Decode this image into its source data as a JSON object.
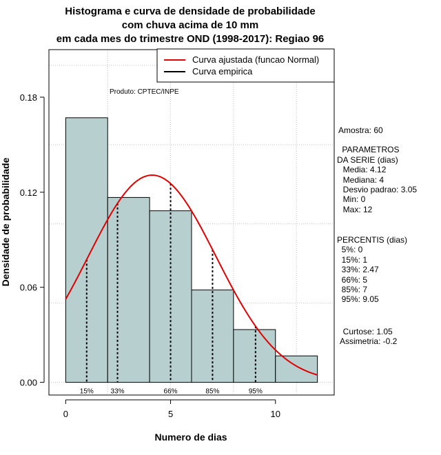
{
  "chart_data": {
    "type": "bar",
    "title_lines": [
      "Histograma e curva de densidade de probabilidade",
      "com chuva acima de 10 mm",
      "em cada mes do trimestre OND (1998-2017): Regiao 96"
    ],
    "xlabel": "Numero de dias",
    "ylabel": "Densidade de probabilidade",
    "xlim": [
      -0.8,
      12.8
    ],
    "ylim": [
      -0.008,
      0.21
    ],
    "x_ticks": [
      0,
      5,
      10
    ],
    "y_ticks": [
      0.0,
      0.06,
      0.12,
      0.18
    ],
    "y_tick_labels": [
      "0.00",
      "0.06",
      "0.12",
      "0.18"
    ],
    "x_grid": [
      2,
      5,
      8,
      11
    ],
    "y_grid": [
      0.0,
      0.05,
      0.1,
      0.15,
      0.2
    ],
    "grid": true,
    "bars": [
      {
        "x0": 0,
        "x1": 2,
        "value": 0.167
      },
      {
        "x0": 2,
        "x1": 4,
        "value": 0.1167
      },
      {
        "x0": 4,
        "x1": 6,
        "value": 0.1083
      },
      {
        "x0": 6,
        "x1": 8,
        "value": 0.0583
      },
      {
        "x0": 8,
        "x1": 10,
        "value": 0.0333
      },
      {
        "x0": 10,
        "x1": 12,
        "value": 0.0167
      }
    ],
    "normal_fit": {
      "mean": 4.12,
      "sd": 3.05,
      "x_from": 0,
      "x_to": 12
    },
    "percentile_lines": [
      {
        "x": 1,
        "label": "15%"
      },
      {
        "x": 2.47,
        "label": "33%"
      },
      {
        "x": 5,
        "label": "66%"
      },
      {
        "x": 7,
        "label": "85%"
      },
      {
        "x": 9.05,
        "label": "95%"
      }
    ],
    "legend": {
      "placement": "top-right",
      "entries": [
        {
          "label": "Curva ajustada (funcao Normal)",
          "color": "#e00000"
        },
        {
          "label": "Curva empirica",
          "color": "#000000"
        }
      ]
    },
    "annotation": "Produto: CPTEC/INPE",
    "colors": {
      "bar_fill": "#b8cfcf",
      "curve": "#e00000",
      "grid": "#c0c0c0"
    },
    "side_panel": [
      "Amostra: 60",
      " PARAMETROS",
      "DA SERIE (dias)",
      "  Media: 4.12",
      "  Mediana: 4",
      "  Desvio padrao: 3.05",
      "  Min: 0",
      "  Max: 12",
      "PERCENTIS (dias)",
      "  5%: 0",
      "  15%: 1",
      "  33%: 2.47",
      "  66%: 5",
      "  85%: 7",
      "  95%: 9.05",
      "  Curtose: 1.05",
      "Assimetria: -0.2"
    ]
  }
}
